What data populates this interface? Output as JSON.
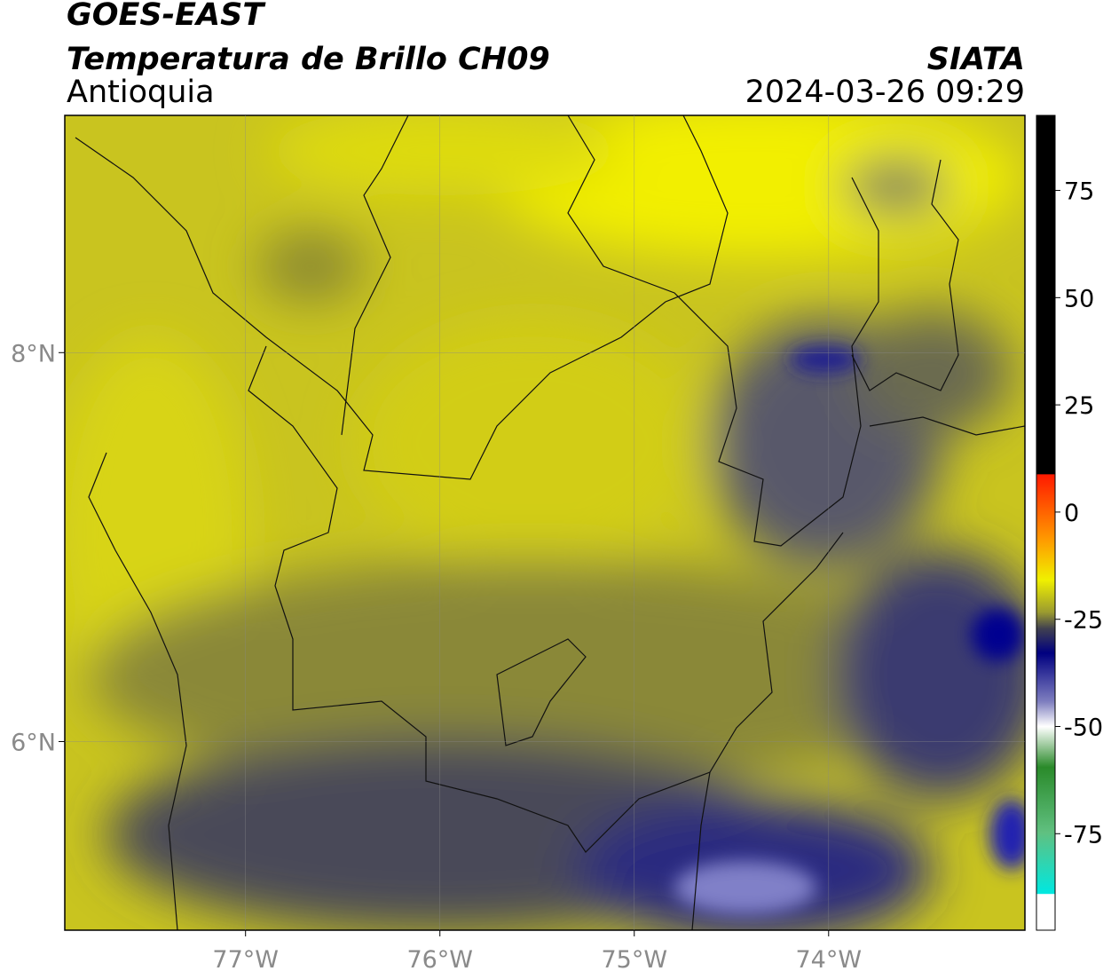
{
  "header": {
    "title": "GOES-EAST",
    "subtitle": "Temperatura de Brillo CH09",
    "region": "Antioquia",
    "source": "SIATA",
    "datetime": "2024-03-26 09:29"
  },
  "map": {
    "lonlim": [
      -77.93,
      -72.99
    ],
    "latlim": [
      5.03,
      9.22
    ],
    "lonticks": [
      {
        "value": -77,
        "label": "77°W"
      },
      {
        "value": -76,
        "label": "76°W"
      },
      {
        "value": -75,
        "label": "75°W"
      },
      {
        "value": -74,
        "label": "74°W"
      }
    ],
    "latticks": [
      {
        "value": 8,
        "label": "8°N"
      },
      {
        "value": 6,
        "label": "6°N"
      }
    ]
  },
  "colorbar": {
    "lim": [
      -97.5,
      92.5
    ],
    "ticks": [
      75,
      50,
      25,
      0,
      -25,
      -50,
      -75
    ]
  }
}
